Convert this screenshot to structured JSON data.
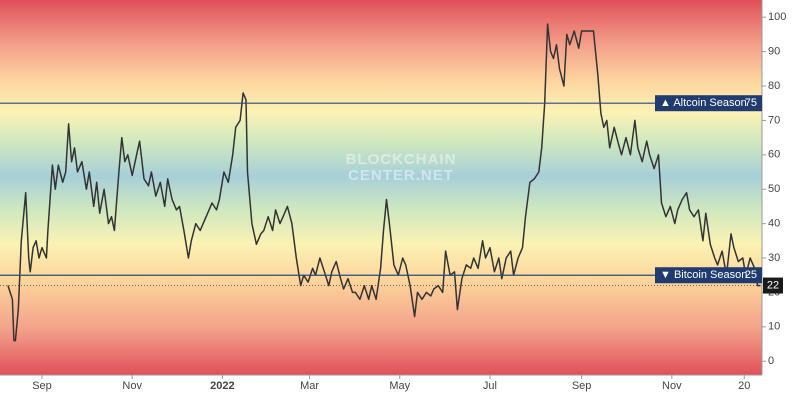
{
  "chart_data": {
    "type": "line",
    "watermark": [
      "BLOCKCHAIN",
      "CENTER.NET"
    ],
    "x": [
      0,
      3,
      4,
      5,
      7,
      9,
      12,
      14,
      15,
      17,
      19,
      21,
      23,
      26,
      27,
      30,
      32,
      34,
      37,
      39,
      41,
      43,
      45,
      47,
      50,
      53,
      55,
      58,
      60,
      62,
      65,
      68,
      70,
      72,
      75,
      77,
      79,
      81,
      84,
      87,
      89,
      92,
      95,
      97,
      100,
      103,
      106,
      108,
      111,
      114,
      116,
      119,
      122,
      124,
      127,
      130,
      133,
      135,
      138,
      141,
      143,
      146,
      149,
      152,
      154,
      157,
      159,
      161,
      162,
      165,
      168,
      171,
      173,
      176,
      179,
      181,
      184,
      187,
      189,
      192,
      195,
      198,
      200,
      203,
      206,
      208,
      211,
      214,
      217,
      219,
      222,
      225,
      227,
      230,
      233,
      235,
      238,
      241,
      244,
      246,
      249,
      252,
      254,
      256,
      258,
      261,
      264,
      267,
      269,
      272,
      275,
      277,
      280,
      283,
      286,
      288,
      291,
      294,
      296,
      299,
      302,
      304,
      307,
      310,
      313,
      315,
      318,
      321,
      323,
      326,
      329,
      332,
      334,
      337,
      340,
      342,
      345,
      348,
      350,
      353,
      356,
      359,
      361,
      363,
      365,
      367,
      369,
      371,
      373,
      376,
      378,
      380,
      383,
      386,
      388,
      391,
      394,
      396,
      399,
      401,
      403,
      405,
      407,
      410,
      413,
      415,
      418,
      421,
      424,
      426,
      429,
      432,
      434,
      437,
      440,
      442,
      445,
      448,
      451,
      453,
      456,
      459,
      461,
      464,
      467,
      470,
      472,
      475,
      478,
      480,
      483,
      486,
      489,
      491,
      494,
      497,
      499,
      502,
      505,
      507,
      509
    ],
    "series": [
      {
        "color": "#333333",
        "values": [
          22,
          18,
          6,
          6,
          15,
          35,
          49,
          30,
          26,
          33,
          35,
          30,
          33,
          30,
          38,
          57,
          50,
          57,
          52,
          55,
          69,
          58,
          62,
          55,
          58,
          50,
          55,
          45,
          52,
          43,
          50,
          40,
          42,
          38,
          55,
          65,
          58,
          60,
          54,
          60,
          64,
          53,
          51,
          55,
          48,
          52,
          45,
          53,
          47,
          44,
          45,
          38,
          30,
          35,
          40,
          38,
          41,
          43,
          46,
          44,
          47,
          55,
          52,
          60,
          68,
          70,
          78,
          76,
          55,
          40,
          34,
          37,
          38,
          42,
          38,
          44,
          40,
          43,
          45,
          40,
          30,
          22,
          25,
          23,
          27,
          25,
          30,
          26,
          22,
          26,
          29,
          24,
          21,
          24,
          20,
          20,
          18,
          22,
          18,
          22,
          18,
          27,
          38,
          47,
          40,
          28,
          25,
          30,
          28,
          22,
          13,
          20,
          18,
          20,
          19,
          21,
          22,
          20,
          32,
          25,
          26,
          15,
          24,
          28,
          27,
          30,
          27,
          35,
          30,
          33,
          26,
          30,
          24,
          30,
          32,
          25,
          30,
          33,
          42,
          52,
          53,
          55,
          62,
          75,
          98,
          90,
          88,
          92,
          85,
          80,
          95,
          92,
          96,
          91,
          96,
          96,
          96,
          96,
          83,
          72,
          68,
          70,
          62,
          68,
          63,
          60,
          65,
          60,
          70,
          62,
          58,
          64,
          60,
          56,
          60,
          46,
          42,
          45,
          40,
          44,
          47,
          49,
          44,
          42,
          44,
          35,
          43,
          34,
          30,
          28,
          32,
          25,
          37,
          33,
          29,
          30,
          25,
          30,
          27,
          22,
          22
        ]
      }
    ],
    "xlim": [
      0,
      510
    ],
    "xticks": [
      {
        "value": 23,
        "label": "Sep"
      },
      {
        "value": 84,
        "label": "Nov"
      },
      {
        "value": 145,
        "label": "2022"
      },
      {
        "value": 204,
        "label": "Mar"
      },
      {
        "value": 265,
        "label": "May"
      },
      {
        "value": 326,
        "label": "Jul"
      },
      {
        "value": 388,
        "label": "Sep"
      },
      {
        "value": 449,
        "label": "Nov"
      },
      {
        "value": 498,
        "label": "20"
      }
    ],
    "ylim": [
      -4,
      105
    ],
    "yticks": [
      0,
      10,
      20,
      30,
      40,
      50,
      60,
      70,
      80,
      90,
      100
    ],
    "thresholds": [
      {
        "label": "▲ Altcoin Season",
        "value": 75
      },
      {
        "label": "▼ Bitcoin Season",
        "value": 25
      }
    ],
    "current": 22
  }
}
